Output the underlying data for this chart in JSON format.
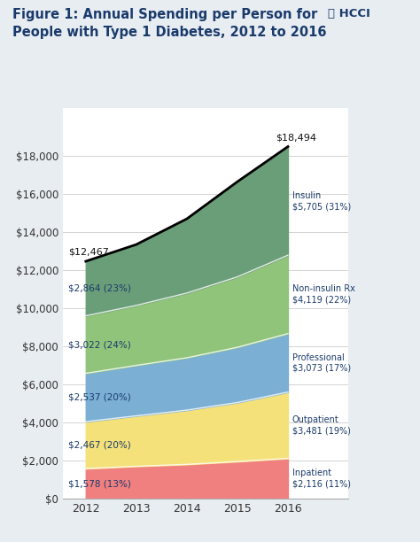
{
  "years": [
    2012,
    2013,
    2014,
    2015,
    2016
  ],
  "categories": [
    "Inpatient",
    "Outpatient",
    "Professional",
    "Non-insulin Rx",
    "Insulin"
  ],
  "colors": [
    "#f08080",
    "#f5e17a",
    "#7bafd4",
    "#90c47a",
    "#6a9e78"
  ],
  "values": {
    "Inpatient": [
      1578,
      1700,
      1800,
      1950,
      2116
    ],
    "Outpatient": [
      2467,
      2650,
      2850,
      3100,
      3481
    ],
    "Professional": [
      2537,
      2650,
      2750,
      2900,
      3073
    ],
    "Non-insulin Rx": [
      3022,
      3150,
      3400,
      3700,
      4119
    ],
    "Insulin": [
      2864,
      3200,
      3900,
      5000,
      5705
    ]
  },
  "total_2012": 12467,
  "total_2016": 18494,
  "title_line1": "Figure 1: Annual Spending per Person for",
  "title_line2": "People with Type 1 Diabetes, 2012 to 2016",
  "logo_text": "HCCI",
  "label_2012": {
    "Inpatient": "$1,578 (13%)",
    "Outpatient": "$2,467 (20%)",
    "Professional": "$2,537 (20%)",
    "Non-insulin Rx": "$3,022 (24%)",
    "Insulin": "$2,864 (23%)"
  },
  "label_2016_line1": {
    "Inpatient": "Inpatient",
    "Outpatient": "Outpatient",
    "Professional": "Professional",
    "Non-insulin Rx": "Non-insulin Rx",
    "Insulin": "Insulin"
  },
  "label_2016_line2": {
    "Inpatient": "$2,116 (11%)",
    "Outpatient": "$3,481 (19%)",
    "Professional": "$3,073 (17%)",
    "Non-insulin Rx": "$4,119 (22%)",
    "Insulin": "$5,705 (31%)"
  },
  "ylim": [
    0,
    20500
  ],
  "yticks": [
    0,
    2000,
    4000,
    6000,
    8000,
    10000,
    12000,
    14000,
    16000,
    18000
  ],
  "background_color": "#e8edf2",
  "plot_bg_color": "#ffffff",
  "title_color": "#1a3a6b",
  "label_color": "#1a3a6b"
}
